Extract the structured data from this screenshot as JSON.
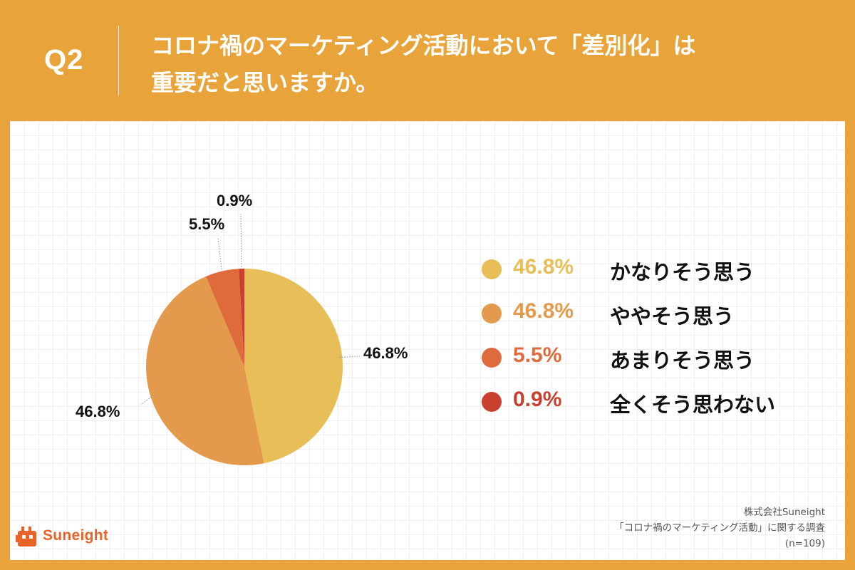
{
  "header": {
    "qnum": "Q2",
    "question_line1": "コロナ禍のマーケティング活動において「差別化」は",
    "question_line2": "重要だと思いますか。"
  },
  "chart_data": {
    "type": "pie",
    "title": "コロナ禍のマーケティング活動において「差別化」は重要だと思いますか。",
    "categories": [
      "かなりそう思う",
      "ややそう思う",
      "あまりそう思う",
      "全くそう思わない"
    ],
    "values": [
      46.8,
      46.8,
      5.5,
      0.9
    ],
    "value_labels": [
      "46.8%",
      "46.8%",
      "5.5%",
      "0.9%"
    ],
    "colors": [
      "#e8be58",
      "#e39a4c",
      "#df6a3c",
      "#c9402f"
    ],
    "start_angle": "12 o'clock",
    "direction": "clockwise",
    "legend_position": "right"
  },
  "legend": [
    {
      "pct": "46.8%",
      "label": "かなりそう思う",
      "color": "#e8be58"
    },
    {
      "pct": "46.8%",
      "label": "ややそう思う",
      "color": "#e39a4c"
    },
    {
      "pct": "5.5%",
      "label": "あまりそう思う",
      "color": "#df6a3c"
    },
    {
      "pct": "0.9%",
      "label": "全くそう思わない",
      "color": "#c9402f"
    }
  ],
  "footer": {
    "company": "株式会社Suneight",
    "survey": "「コロナ禍のマーケティング活動」に関する調査",
    "sample": "(n=109)"
  },
  "logo": {
    "text": "Suneight"
  },
  "colors": {
    "background": "#e8a43a",
    "panel": "#ffffff",
    "logo_accent": "#e8632a"
  }
}
